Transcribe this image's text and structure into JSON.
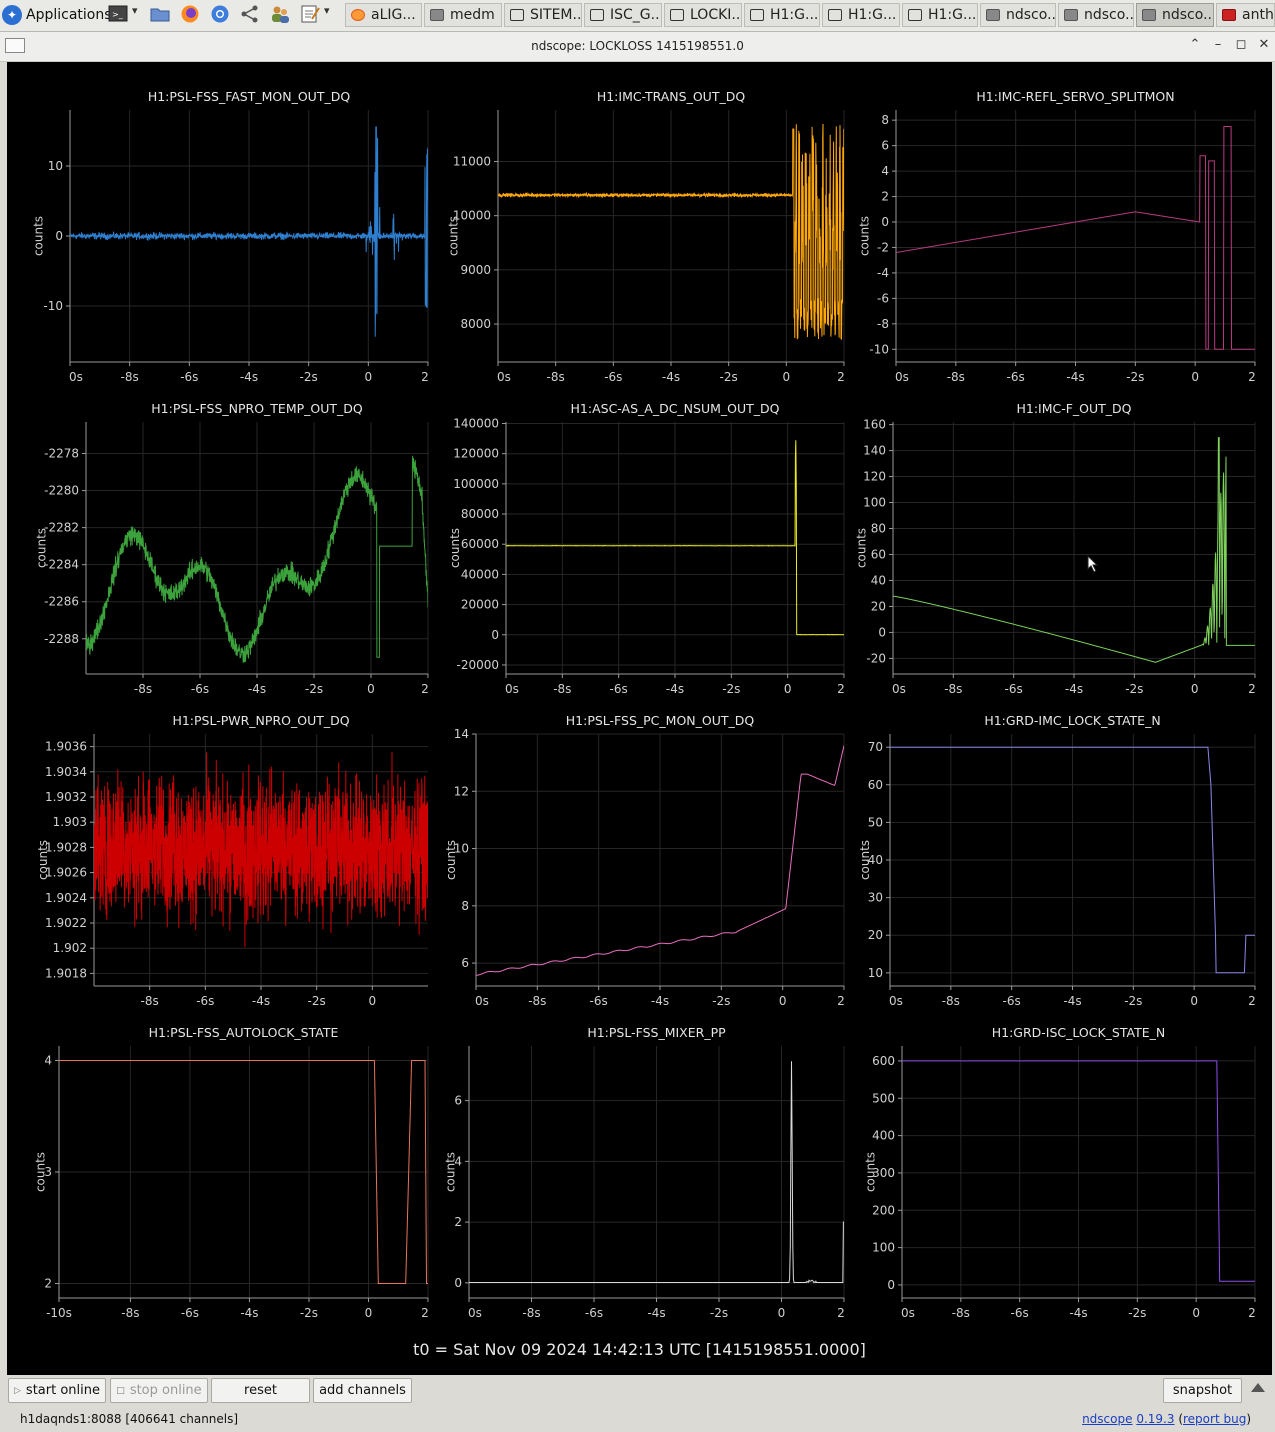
{
  "taskbar": {
    "apps_label": "Applications",
    "windows": [
      {
        "label": "aLIG...",
        "icon": "firefox-icon"
      },
      {
        "label": "medm",
        "icon": "window-icon"
      },
      {
        "label": "SITEM...",
        "icon": "terminal-icon"
      },
      {
        "label": "ISC_G...",
        "icon": "terminal-icon"
      },
      {
        "label": "LOCKI...",
        "icon": "terminal-icon"
      },
      {
        "label": "H1:G...",
        "icon": "terminal-icon"
      },
      {
        "label": "H1:G...",
        "icon": "terminal-icon"
      },
      {
        "label": "H1:G...",
        "icon": "terminal-icon"
      },
      {
        "label": "ndsco...",
        "icon": "window-icon"
      },
      {
        "label": "ndsco...",
        "icon": "window-icon"
      },
      {
        "label": "ndsco...",
        "icon": "window-icon"
      },
      {
        "label": "antho",
        "icon": "red-app-icon"
      }
    ]
  },
  "window": {
    "title": "ndscope: LOCKLOSS 1415198551.0"
  },
  "plots": {
    "t0_label": "t0 = Sat Nov 09 2024 14:42:13 UTC [1415198551.0000]"
  },
  "chart_data": [
    {
      "type": "line",
      "title": "H1:PSL-FSS_FAST_MON_OUT_DQ",
      "ylabel": "counts",
      "xlim": [
        -10,
        2
      ],
      "ylim": [
        -18,
        18
      ],
      "x_ticks": [
        "0s",
        "-8s",
        "-6s",
        "-4s",
        "-2s",
        "0",
        "2"
      ],
      "y_ticks": [
        "10",
        "0",
        "-10"
      ],
      "color": "#2e7fcf",
      "trace": "noisy flat near 0, spikes to about +16 / -16 at t≈0.3 and around t≈2"
    },
    {
      "type": "line",
      "title": "H1:IMC-TRANS_OUT_DQ",
      "ylabel": "counts",
      "xlim": [
        -10,
        2
      ],
      "ylim": [
        7300,
        11950
      ],
      "x_ticks": [
        "0s",
        "-8s",
        "-6s",
        "-4s",
        "-2s",
        "0",
        "2"
      ],
      "y_ticks": [
        "11000",
        "10000",
        "9000",
        "8000"
      ],
      "color": "#ffa80c",
      "trace": "flat about 10380 until t≈0.2, then oscillating between about 7600 and 11600"
    },
    {
      "type": "line",
      "title": "H1:IMC-REFL_SERVO_SPLITMON",
      "ylabel": "counts",
      "xlim": [
        -10,
        2
      ],
      "ylim": [
        -11,
        8.8
      ],
      "x_ticks": [
        "0s",
        "-8s",
        "-6s",
        "-4s",
        "-2s",
        "0",
        "2"
      ],
      "y_ticks": [
        "8",
        "6",
        "4",
        "2",
        "0",
        "-2",
        "-4",
        "-6",
        "-8",
        "-10"
      ],
      "color": "#b83a80",
      "trace": "rises from -2.4 at -10s to about 0.8 at -2s, drops to 0 near t=0, then swings between -10 and 7.5"
    },
    {
      "type": "line",
      "title": "H1:PSL-FSS_NPRO_TEMP_OUT_DQ",
      "ylabel": "counts",
      "xlim": [
        -10,
        2
      ],
      "ylim": [
        -2289.9,
        -2276.3
      ],
      "x_ticks": [
        "-8s",
        "-6s",
        "-4s",
        "-2s",
        "0",
        "2"
      ],
      "y_ticks": [
        "-2278",
        "-2280",
        "-2282",
        "-2284",
        "-2286",
        "-2288"
      ],
      "color": "#3ca23c",
      "trace": "noisy wander between about -2279.5 and -2286, flat at -2283 from t≈0.4 to 1.4, jump to -2278 near t≈1.5 then drop"
    },
    {
      "type": "line",
      "title": "H1:ASC-AS_A_DC_NSUM_OUT_DQ",
      "ylabel": "counts",
      "xlim": [
        -10,
        2
      ],
      "ylim": [
        -26000,
        141000
      ],
      "x_ticks": [
        "0s",
        "-8s",
        "-6s",
        "-4s",
        "-2s",
        "0",
        "2"
      ],
      "y_ticks": [
        "140000",
        "120000",
        "100000",
        "80000",
        "60000",
        "40000",
        "20000",
        "0",
        "-20000"
      ],
      "color": "#ecec1c",
      "trace": "flat at 59000, spike to 130000 at t≈0.3, then flat near 0"
    },
    {
      "type": "line",
      "title": "H1:IMC-F_OUT_DQ",
      "ylabel": "counts",
      "xlim": [
        -10,
        2
      ],
      "ylim": [
        -32,
        162
      ],
      "x_ticks": [
        "0s",
        "-8s",
        "-6s",
        "-4s",
        "-2s",
        "0",
        "2"
      ],
      "y_ticks": [
        "160",
        "140",
        "120",
        "100",
        "80",
        "60",
        "40",
        "20",
        "0",
        "-20"
      ],
      "color": "#7fd35d",
      "trace": "falls from 28 at -10s to -23 at -1.3s, rises to -10 near 0, oscillating peak 150 at t≈0.8, settles at -10"
    },
    {
      "type": "line",
      "title": "H1:PSL-PWR_NPRO_OUT_DQ",
      "ylabel": "counts",
      "xlim": [
        -10,
        2
      ],
      "ylim": [
        1.9017,
        1.9037
      ],
      "x_ticks": [
        "-8s",
        "-6s",
        "-4s",
        "-2s",
        "0"
      ],
      "y_ticks": [
        "1.9036",
        "1.9034",
        "1.9032",
        "1.903",
        "1.9028",
        "1.9026",
        "1.9024",
        "1.9022",
        "1.902",
        "1.9018"
      ],
      "color": "#cc0000",
      "trace": "dense noise band between about 1.9020 and 1.9036"
    },
    {
      "type": "line",
      "title": "H1:PSL-FSS_PC_MON_OUT_DQ",
      "ylabel": "counts",
      "xlim": [
        -10,
        2
      ],
      "ylim": [
        5.2,
        14
      ],
      "x_ticks": [
        "0s",
        "-8s",
        "-6s",
        "-4s",
        "-2s",
        "0",
        "2"
      ],
      "y_ticks": [
        "14",
        "12",
        "10",
        "8",
        "6"
      ],
      "color": "#e86fbd",
      "trace": "slow rise 5.6 to 7.9 until t≈0, sharp rise to 12.6 by t≈0.8, to 13.6 at t=2"
    },
    {
      "type": "line",
      "title": "H1:GRD-IMC_LOCK_STATE_N",
      "ylabel": "counts",
      "xlim": [
        -10,
        2
      ],
      "ylim": [
        6.5,
        73.5
      ],
      "x_ticks": [
        "0s",
        "-8s",
        "-6s",
        "-4s",
        "-2s",
        "0",
        "2"
      ],
      "y_ticks": [
        "70",
        "60",
        "50",
        "40",
        "30",
        "20",
        "10"
      ],
      "color": "#8c86e8",
      "trace": "steady at 70, drops to 10 after t≈0.5, rises to 20 near t≈1.7"
    },
    {
      "type": "line",
      "title": "H1:PSL-FSS_AUTOLOCK_STATE",
      "ylabel": "counts",
      "xlim": [
        -10.4,
        2
      ],
      "ylim": [
        1.87,
        4.13
      ],
      "x_ticks": [
        "-10s",
        "-8s",
        "-6s",
        "-4s",
        "-2s",
        "0",
        "2"
      ],
      "y_ticks": [
        "4",
        "3",
        "2"
      ],
      "color": "#e8735a",
      "trace": "steady at 4, drops to 2 at t≈0.2, returns to 4 around t≈1.4, drops to 2 at end"
    },
    {
      "type": "line",
      "title": "H1:PSL-FSS_MIXER_PP",
      "ylabel": "counts",
      "xlim": [
        -10,
        2
      ],
      "ylim": [
        -0.5,
        7.8
      ],
      "x_ticks": [
        "0s",
        "-8s",
        "-6s",
        "-4s",
        "-2s",
        "0",
        "2"
      ],
      "y_ticks": [
        "6",
        "4",
        "2",
        "0"
      ],
      "color": "#d9d9d9",
      "trace": "near 0, sharp spike to 7.3 at t≈0.3"
    },
    {
      "type": "line",
      "title": "H1:GRD-ISC_LOCK_STATE_N",
      "ylabel": "counts",
      "xlim": [
        -10,
        2
      ],
      "ylim": [
        -35,
        640
      ],
      "x_ticks": [
        "0s",
        "-8s",
        "-6s",
        "-4s",
        "-2s",
        "0",
        "2"
      ],
      "y_ticks": [
        "600",
        "500",
        "400",
        "300",
        "200",
        "100",
        "0"
      ],
      "color": "#8d4dea",
      "trace": "steady at 600, drops to 10 at t≈0.7"
    }
  ],
  "toolbar": {
    "start_online": "start online",
    "stop_online": "stop online",
    "reset": "reset",
    "add_channels": "add channels",
    "snapshot": "snapshot"
  },
  "status": {
    "server": "h1daqnds1:8088  [406641 channels]",
    "app_name": "ndscope",
    "version": "0.19.3",
    "report_bug": "report bug"
  }
}
